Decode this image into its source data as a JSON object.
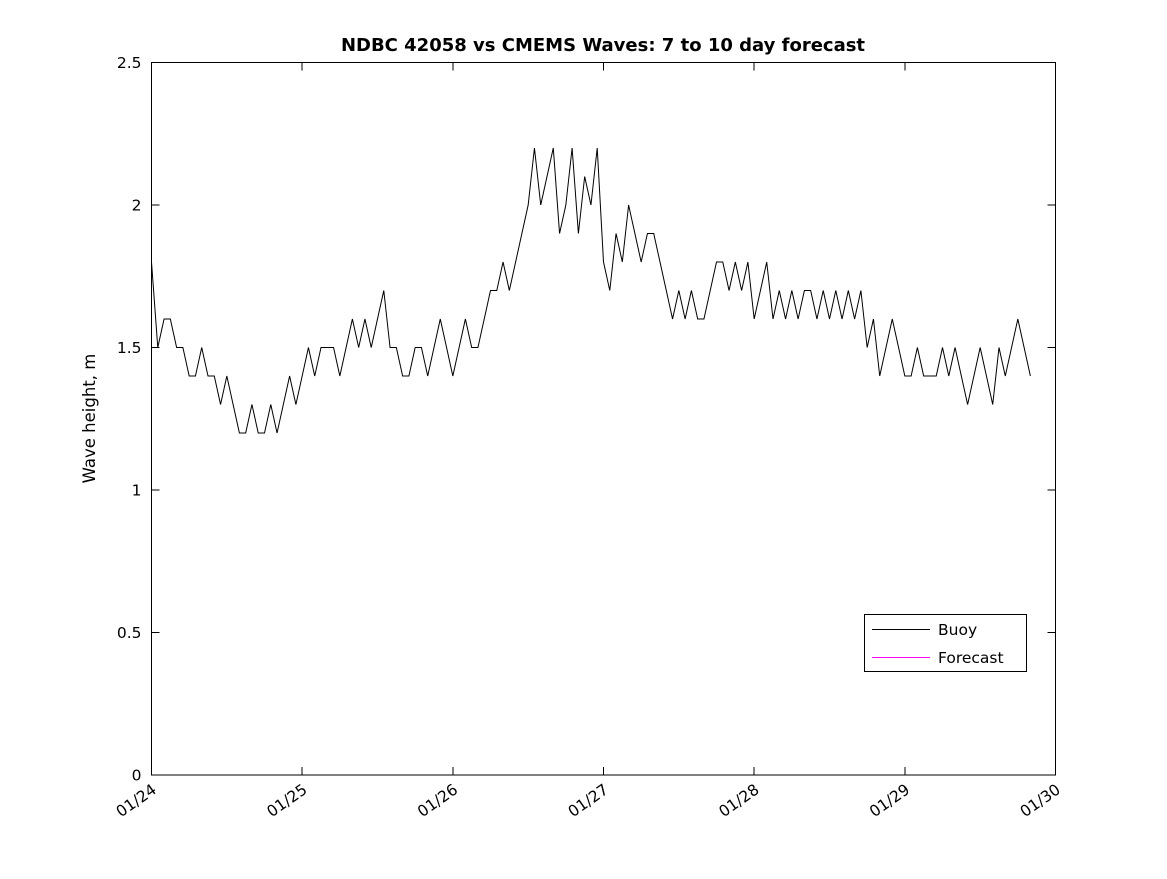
{
  "chart_data": {
    "type": "line",
    "title": "NDBC 42058 vs CMEMS Waves: 7 to 10 day forecast",
    "xlabel": "",
    "ylabel": "Wave height, m",
    "xlim": [
      0,
      6
    ],
    "ylim": [
      0,
      2.5
    ],
    "xticks": [
      "01/24",
      "01/25",
      "01/26",
      "01/27",
      "01/28",
      "01/29",
      "01/30"
    ],
    "ytick_values": [
      0,
      0.5,
      1,
      1.5,
      2,
      2.5
    ],
    "ytick_labels": [
      "0",
      "0.5",
      "1",
      "1.5",
      "2",
      "2.5"
    ],
    "grid": false,
    "legend_position": "lower-right-inside",
    "x_units": "days since 01/24",
    "series": [
      {
        "name": "Buoy",
        "color": "#000000",
        "x_start": 0,
        "dx": 0.0416667,
        "values": [
          1.8,
          1.5,
          1.6,
          1.6,
          1.5,
          1.5,
          1.4,
          1.4,
          1.5,
          1.4,
          1.4,
          1.3,
          1.4,
          1.3,
          1.2,
          1.2,
          1.3,
          1.2,
          1.2,
          1.3,
          1.2,
          1.3,
          1.4,
          1.3,
          1.4,
          1.5,
          1.4,
          1.5,
          1.5,
          1.5,
          1.4,
          1.5,
          1.6,
          1.5,
          1.6,
          1.5,
          1.6,
          1.7,
          1.5,
          1.5,
          1.4,
          1.4,
          1.5,
          1.5,
          1.4,
          1.5,
          1.6,
          1.5,
          1.4,
          1.5,
          1.6,
          1.5,
          1.5,
          1.6,
          1.7,
          1.7,
          1.8,
          1.7,
          1.8,
          1.9,
          2.0,
          2.2,
          2.0,
          2.1,
          2.2,
          1.9,
          2.0,
          2.2,
          1.9,
          2.1,
          2.0,
          2.2,
          1.8,
          1.7,
          1.9,
          1.8,
          2.0,
          1.9,
          1.8,
          1.9,
          1.9,
          1.8,
          1.7,
          1.6,
          1.7,
          1.6,
          1.7,
          1.6,
          1.6,
          1.7,
          1.8,
          1.8,
          1.7,
          1.8,
          1.7,
          1.8,
          1.6,
          1.7,
          1.8,
          1.6,
          1.7,
          1.6,
          1.7,
          1.6,
          1.7,
          1.7,
          1.6,
          1.7,
          1.6,
          1.7,
          1.6,
          1.7,
          1.6,
          1.7,
          1.5,
          1.6,
          1.4,
          1.5,
          1.6,
          1.5,
          1.4,
          1.4,
          1.5,
          1.4,
          1.4,
          1.4,
          1.5,
          1.4,
          1.5,
          1.4,
          1.3,
          1.4,
          1.5,
          1.4,
          1.3,
          1.5,
          1.4,
          1.5,
          1.6,
          1.5,
          1.4
        ]
      },
      {
        "name": "Forecast",
        "color": "#ff00ff",
        "x_start": 0,
        "dx": 0.0416667,
        "values": []
      }
    ]
  }
}
